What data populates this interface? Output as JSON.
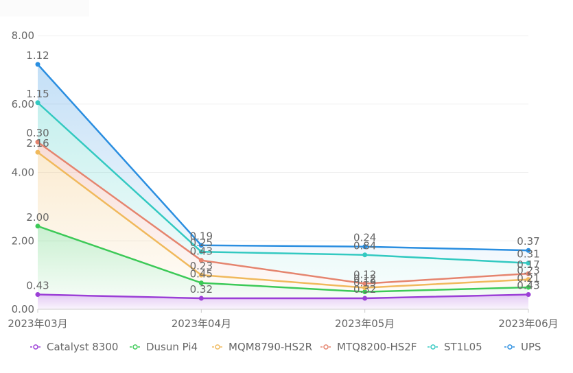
{
  "chart_data": {
    "type": "area",
    "stacked": true,
    "categories": [
      "2023年03月",
      "2023年04月",
      "2023年05月",
      "2023年06月"
    ],
    "ylim": [
      0,
      8
    ],
    "yticks": [
      "0.00",
      "2.00",
      "4.00",
      "6.00",
      "8.00"
    ],
    "grid": true,
    "legend_position": "bottom",
    "series": [
      {
        "name": "Catalyst 8300",
        "color": "#9b3fd6",
        "values": [
          0.43,
          0.32,
          0.32,
          0.43
        ],
        "labels": [
          "0.43",
          "0.32",
          "0.32",
          "0.43"
        ]
      },
      {
        "name": "Dusun Pi4",
        "color": "#3cc957",
        "values": [
          2.0,
          0.45,
          0.19,
          0.21
        ],
        "labels": [
          "2.00",
          "0.45",
          "0.19",
          "0.21"
        ]
      },
      {
        "name": "MQM8790-HS2R",
        "color": "#f0b95c",
        "values": [
          2.16,
          0.23,
          0.12,
          0.23
        ],
        "labels": [
          "2.16",
          "0.23",
          "0.12",
          "0.23"
        ]
      },
      {
        "name": "MTQ8200-HS2F",
        "color": "#e5846e",
        "values": [
          0.3,
          0.43,
          0.12,
          0.17
        ],
        "labels": [
          "0.30",
          "0.43",
          "0.12",
          "0.17"
        ]
      },
      {
        "name": "ST1L05",
        "color": "#33c9c1",
        "values": [
          1.15,
          0.25,
          0.84,
          0.31
        ],
        "labels": [
          "1.15",
          "0.25",
          "0.84",
          "0.31"
        ]
      },
      {
        "name": "UPS",
        "color": "#2a8ee0",
        "values": [
          1.12,
          0.19,
          0.24,
          0.37
        ],
        "labels": [
          "1.12",
          "0.19",
          "0.24",
          "0.37"
        ]
      }
    ]
  }
}
